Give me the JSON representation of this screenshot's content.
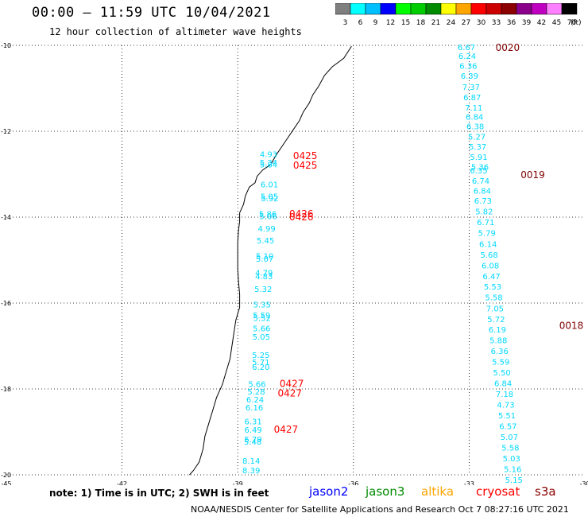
{
  "header": {
    "title": "00:00 – 11:59 UTC 10/04/2021",
    "subtitle": "12 hour collection of altimeter wave heights"
  },
  "colorbar": {
    "colors": [
      "#7f7f7f",
      "#00ffff",
      "#00bfff",
      "#0000ff",
      "#00ff00",
      "#00cd00",
      "#008b00",
      "#ffff00",
      "#ffa500",
      "#ff0000",
      "#cd0000",
      "#8b0000",
      "#8b008b",
      "#c000c0",
      "#ff80ff",
      "#000000"
    ],
    "labels": [
      "3",
      "6",
      "9",
      "12",
      "15",
      "18",
      "21",
      "24",
      "27",
      "30",
      "33",
      "36",
      "39",
      "42",
      "45",
      "70"
    ],
    "unit": "(ft)"
  },
  "chart_data": {
    "type": "scatter",
    "xlim": [
      -45,
      -30
    ],
    "ylim": [
      -20,
      -10
    ],
    "x_ticks": [
      -45,
      -42,
      -39,
      -36,
      -33,
      -30
    ],
    "y_ticks": [
      -10,
      -12,
      -14,
      -16,
      -18,
      -20
    ],
    "grid": true,
    "series": [
      {
        "name": "jason2",
        "color": "#00d8ff",
        "points": [
          {
            "x": -33.07,
            "y": -10.04,
            "v": "6.67"
          },
          {
            "x": -33.05,
            "y": -10.24,
            "v": "6.24"
          },
          {
            "x": -33.02,
            "y": -10.47,
            "v": "6.36"
          },
          {
            "x": -32.99,
            "y": -10.7,
            "v": "6.39"
          },
          {
            "x": -32.95,
            "y": -10.96,
            "v": "7.37"
          },
          {
            "x": -32.92,
            "y": -11.2,
            "v": "6.87"
          },
          {
            "x": -32.88,
            "y": -11.44,
            "v": "7.11"
          },
          {
            "x": -32.86,
            "y": -11.66,
            "v": "6.84"
          },
          {
            "x": -32.84,
            "y": -11.88,
            "v": "6.38"
          },
          {
            "x": -32.8,
            "y": -12.12,
            "v": "5.27"
          },
          {
            "x": -32.78,
            "y": -12.35,
            "v": "5.37"
          },
          {
            "x": -32.75,
            "y": -12.59,
            "v": "5.91"
          },
          {
            "x": -32.72,
            "y": -12.82,
            "v": "5.36"
          },
          {
            "x": -32.75,
            "y": -12.91,
            "v": "6.35"
          },
          {
            "x": -32.7,
            "y": -13.15,
            "v": "6.74"
          },
          {
            "x": -32.66,
            "y": -13.38,
            "v": "6.84"
          },
          {
            "x": -32.64,
            "y": -13.61,
            "v": "6.73"
          },
          {
            "x": -32.61,
            "y": -13.86,
            "v": "5.82"
          },
          {
            "x": -32.57,
            "y": -14.11,
            "v": "6.71"
          },
          {
            "x": -32.54,
            "y": -14.36,
            "v": "5.79"
          },
          {
            "x": -32.51,
            "y": -14.62,
            "v": "6.14"
          },
          {
            "x": -32.48,
            "y": -14.87,
            "v": "5.68"
          },
          {
            "x": -32.45,
            "y": -15.12,
            "v": "6.08"
          },
          {
            "x": -32.42,
            "y": -15.37,
            "v": "6.47"
          },
          {
            "x": -32.39,
            "y": -15.61,
            "v": "5.53"
          },
          {
            "x": -32.36,
            "y": -15.86,
            "v": "5.58"
          },
          {
            "x": -32.33,
            "y": -16.12,
            "v": "7.05"
          },
          {
            "x": -32.3,
            "y": -16.37,
            "v": "5.72"
          },
          {
            "x": -32.27,
            "y": -16.61,
            "v": "6.19"
          },
          {
            "x": -32.24,
            "y": -16.86,
            "v": "5.88"
          },
          {
            "x": -32.21,
            "y": -17.11,
            "v": "6.36"
          },
          {
            "x": -32.18,
            "y": -17.36,
            "v": "5.59"
          },
          {
            "x": -32.15,
            "y": -17.61,
            "v": "5.50"
          },
          {
            "x": -32.12,
            "y": -17.86,
            "v": "6.84"
          },
          {
            "x": -32.08,
            "y": -18.11,
            "v": "7.18"
          },
          {
            "x": -32.05,
            "y": -18.36,
            "v": "4.73"
          },
          {
            "x": -32.02,
            "y": -18.61,
            "v": "5.51"
          },
          {
            "x": -31.99,
            "y": -18.86,
            "v": "6.57"
          },
          {
            "x": -31.96,
            "y": -19.11,
            "v": "5.07"
          },
          {
            "x": -31.93,
            "y": -19.36,
            "v": "5.58"
          },
          {
            "x": -31.9,
            "y": -19.61,
            "v": "5.03"
          },
          {
            "x": -31.87,
            "y": -19.86,
            "v": "5.16"
          },
          {
            "x": -31.84,
            "y": -20.11,
            "v": "5.15"
          },
          {
            "x": -38.2,
            "y": -12.53,
            "v": "4.93"
          },
          {
            "x": -38.2,
            "y": -12.72,
            "v": "5.34"
          },
          {
            "x": -38.2,
            "y": -12.77,
            "v": "5.84"
          },
          {
            "x": -38.18,
            "y": -13.23,
            "v": "6.01"
          },
          {
            "x": -38.18,
            "y": -13.51,
            "v": "5.05"
          },
          {
            "x": -38.17,
            "y": -13.56,
            "v": "5.92"
          },
          {
            "x": -38.22,
            "y": -13.92,
            "v": "5.86"
          },
          {
            "x": -38.21,
            "y": -13.97,
            "v": "5.06"
          },
          {
            "x": -38.25,
            "y": -14.26,
            "v": "4.99"
          },
          {
            "x": -38.28,
            "y": -14.54,
            "v": "5.45"
          },
          {
            "x": -38.3,
            "y": -14.9,
            "v": "5.10"
          },
          {
            "x": -38.3,
            "y": -14.96,
            "v": "5.07"
          },
          {
            "x": -38.32,
            "y": -15.29,
            "v": "4.79"
          },
          {
            "x": -38.32,
            "y": -15.37,
            "v": "4.83"
          },
          {
            "x": -38.34,
            "y": -15.67,
            "v": "5.32"
          },
          {
            "x": -38.37,
            "y": -16.03,
            "v": "5.35"
          },
          {
            "x": -38.38,
            "y": -16.28,
            "v": "5.59"
          },
          {
            "x": -38.37,
            "y": -16.34,
            "v": "5.52"
          },
          {
            "x": -38.38,
            "y": -16.58,
            "v": "5.66"
          },
          {
            "x": -38.39,
            "y": -16.78,
            "v": "5.05"
          },
          {
            "x": -38.4,
            "y": -17.2,
            "v": "5.25"
          },
          {
            "x": -38.4,
            "y": -17.37,
            "v": "5.71"
          },
          {
            "x": -38.4,
            "y": -17.48,
            "v": "6.20"
          },
          {
            "x": -38.5,
            "y": -17.88,
            "v": "5.66"
          },
          {
            "x": -38.52,
            "y": -18.06,
            "v": "5.28"
          },
          {
            "x": -38.55,
            "y": -18.24,
            "v": "6.24"
          },
          {
            "x": -38.57,
            "y": -18.43,
            "v": "6.16"
          },
          {
            "x": -38.6,
            "y": -18.75,
            "v": "6.31"
          },
          {
            "x": -38.6,
            "y": -18.94,
            "v": "6.49"
          },
          {
            "x": -38.6,
            "y": -19.17,
            "v": "5.79"
          },
          {
            "x": -38.61,
            "y": -19.22,
            "v": "5.48"
          },
          {
            "x": -38.65,
            "y": -19.67,
            "v": "8.14"
          },
          {
            "x": -38.65,
            "y": -19.89,
            "v": "8.39"
          }
        ]
      }
    ],
    "pass_labels": [
      {
        "x": -32.0,
        "y": -10.04,
        "text": "0020",
        "color": "#800000"
      },
      {
        "x": -31.35,
        "y": -13.0,
        "text": "0019",
        "color": "#800000"
      },
      {
        "x": -30.35,
        "y": -16.51,
        "text": "0018",
        "color": "#800000"
      },
      {
        "x": -37.25,
        "y": -12.56,
        "text": "0425",
        "color": "#ff0000"
      },
      {
        "x": -37.25,
        "y": -12.78,
        "text": "0425",
        "color": "#ff0000"
      },
      {
        "x": -37.35,
        "y": -13.91,
        "text": "0426",
        "color": "#ff0000"
      },
      {
        "x": -37.35,
        "y": -13.98,
        "text": "0426",
        "color": "#ff0000"
      },
      {
        "x": -37.6,
        "y": -17.86,
        "text": "0427",
        "color": "#ff0000"
      },
      {
        "x": -37.65,
        "y": -18.08,
        "text": "0427",
        "color": "#ff0000"
      },
      {
        "x": -37.75,
        "y": -18.93,
        "text": "0427",
        "color": "#ff0000"
      }
    ]
  },
  "coastline": [
    [
      -36.05,
      -10.02
    ],
    [
      -36.25,
      -10.3
    ],
    [
      -36.55,
      -10.5
    ],
    [
      -36.75,
      -10.7
    ],
    [
      -36.9,
      -10.95
    ],
    [
      -37.05,
      -11.15
    ],
    [
      -37.15,
      -11.35
    ],
    [
      -37.3,
      -11.55
    ],
    [
      -37.4,
      -11.75
    ],
    [
      -37.55,
      -11.95
    ],
    [
      -37.7,
      -12.15
    ],
    [
      -37.85,
      -12.35
    ],
    [
      -38.0,
      -12.55
    ],
    [
      -38.15,
      -12.78
    ],
    [
      -38.35,
      -12.9
    ],
    [
      -38.5,
      -13.05
    ],
    [
      -38.55,
      -13.2
    ],
    [
      -38.7,
      -13.3
    ],
    [
      -38.8,
      -13.5
    ],
    [
      -38.85,
      -13.7
    ],
    [
      -38.95,
      -13.9
    ],
    [
      -38.95,
      -14.1
    ],
    [
      -38.98,
      -14.3
    ],
    [
      -39.0,
      -14.6
    ],
    [
      -39.0,
      -14.9
    ],
    [
      -39.0,
      -15.2
    ],
    [
      -38.98,
      -15.5
    ],
    [
      -38.95,
      -15.8
    ],
    [
      -38.95,
      -16.1
    ],
    [
      -39.05,
      -16.4
    ],
    [
      -39.1,
      -16.7
    ],
    [
      -39.15,
      -17.0
    ],
    [
      -39.2,
      -17.3
    ],
    [
      -39.3,
      -17.6
    ],
    [
      -39.4,
      -17.9
    ],
    [
      -39.55,
      -18.2
    ],
    [
      -39.65,
      -18.5
    ],
    [
      -39.75,
      -18.8
    ],
    [
      -39.85,
      -19.1
    ],
    [
      -39.9,
      -19.4
    ],
    [
      -40.0,
      -19.7
    ],
    [
      -40.15,
      -19.9
    ],
    [
      -40.25,
      -20.0
    ]
  ],
  "notes": {
    "text": "note: 1) Time is in UTC; 2) SWH is in feet",
    "missions": [
      {
        "name": "jason2",
        "color": "#0000ff"
      },
      {
        "name": "jason3",
        "color": "#008b00"
      },
      {
        "name": "altika",
        "color": "#ffa500"
      },
      {
        "name": "cryosat",
        "color": "#ff0000"
      },
      {
        "name": "s3a",
        "color": "#8b0000"
      }
    ]
  },
  "credits": "NOAA/NESDIS Center for Satellite Applications and Research   Oct  7 08:27:16 UTC 2021"
}
